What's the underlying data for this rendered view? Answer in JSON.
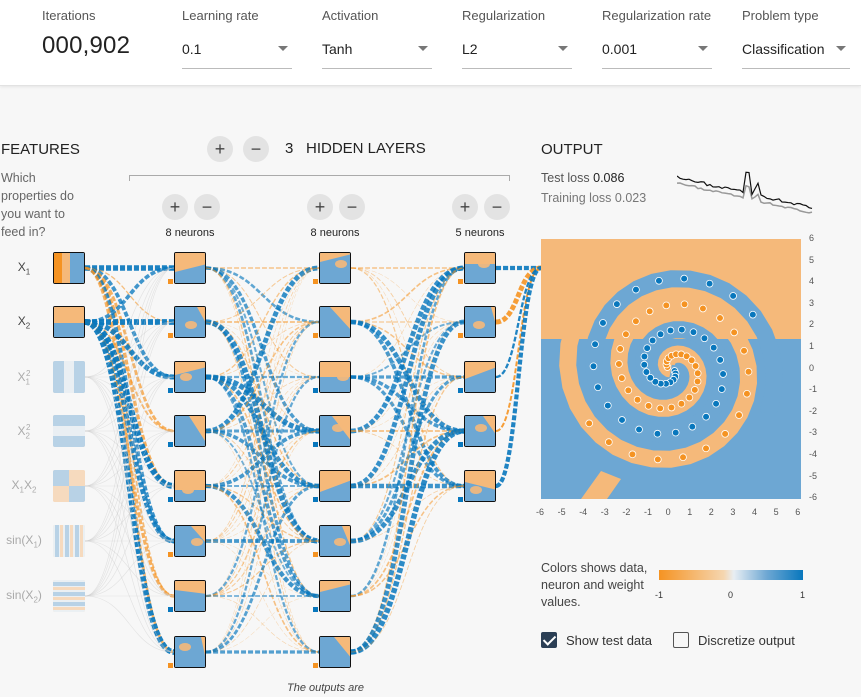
{
  "controls": {
    "iterations": {
      "label": "Iterations",
      "value": "000,902"
    },
    "learning_rate": {
      "label": "Learning rate",
      "value": "0.1"
    },
    "activation": {
      "label": "Activation",
      "value": "Tanh"
    },
    "regularization": {
      "label": "Regularization",
      "value": "L2"
    },
    "regularization_rate": {
      "label": "Regularization rate",
      "value": "0.001"
    },
    "problem_type": {
      "label": "Problem type",
      "value": "Classification"
    }
  },
  "features": {
    "title": "FEATURES",
    "description": "Which properties do you want to feed in?",
    "items": [
      {
        "label": "X1",
        "base": "X",
        "sub": "1",
        "sup": "",
        "active": true
      },
      {
        "label": "X2",
        "base": "X",
        "sub": "2",
        "sup": "",
        "active": true
      },
      {
        "label": "X1^2",
        "base": "X",
        "sub": "1",
        "sup": "2",
        "active": false
      },
      {
        "label": "X2^2",
        "base": "X",
        "sub": "2",
        "sup": "2",
        "active": false
      },
      {
        "label": "X1X2",
        "base": "X",
        "sub": "1",
        "sup": "",
        "extra": "X",
        "extra_sub": "2",
        "active": false
      },
      {
        "label": "sin(X1)",
        "base": "sin(X",
        "sub": "1",
        "sup": "",
        "tail": ")",
        "active": false
      },
      {
        "label": "sin(X2)",
        "base": "sin(X",
        "sub": "2",
        "sup": "",
        "tail": ")",
        "active": false
      }
    ]
  },
  "hidden_layers": {
    "count": "3",
    "label": "HIDDEN LAYERS",
    "plus": "+",
    "minus": "−",
    "layers": [
      {
        "neurons_label": "8 neurons",
        "count": 8
      },
      {
        "neurons_label": "8 neurons",
        "count": 8
      },
      {
        "neurons_label": "5 neurons",
        "count": 5
      }
    ]
  },
  "output": {
    "title": "OUTPUT",
    "test_loss_label": "Test loss",
    "test_loss_value": "0.086",
    "training_loss_label": "Training loss",
    "training_loss_value": "0.023",
    "y_ticks": [
      "6",
      "5",
      "4",
      "3",
      "2",
      "1",
      "0",
      "-1",
      "-2",
      "-3",
      "-4",
      "-5",
      "-6"
    ],
    "x_ticks": [
      "-6",
      "-5",
      "-4",
      "-3",
      "-2",
      "-1",
      "0",
      "1",
      "2",
      "3",
      "4",
      "5",
      "6"
    ]
  },
  "legend": {
    "text": "Colors shows data, neuron and weight values.",
    "min": "-1",
    "mid": "0",
    "max": "1"
  },
  "options": {
    "show_test_data": {
      "label": "Show test data",
      "checked": true
    },
    "discretize_output": {
      "label": "Discretize output",
      "checked": false
    }
  },
  "footnote": "The outputs are",
  "colors": {
    "orange": "#f59322",
    "blue": "#0877bd",
    "light_orange": "#f5b97a",
    "light_blue": "#6da7d3"
  }
}
